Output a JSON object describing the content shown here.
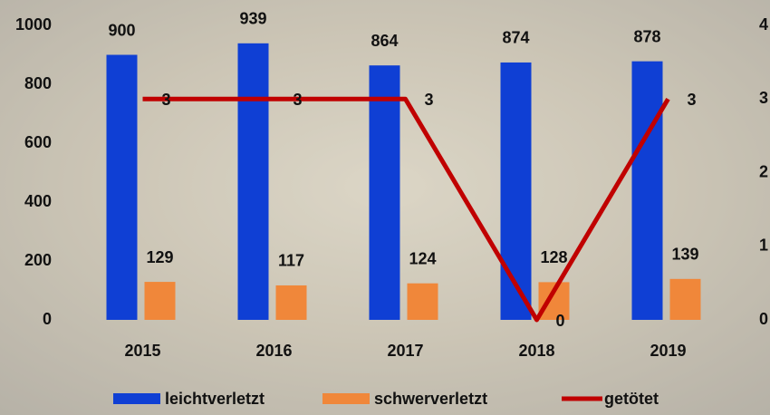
{
  "chart_data": {
    "type": "bar-line",
    "categories": [
      "2015",
      "2016",
      "2017",
      "2018",
      "2019"
    ],
    "series": [
      {
        "name": "leichtverletzt",
        "type": "bar",
        "color": "#0f3fd4",
        "values": [
          900,
          939,
          864,
          874,
          878
        ]
      },
      {
        "name": "schwerverletzt",
        "type": "bar",
        "color": "#f0873a",
        "values": [
          129,
          117,
          124,
          128,
          139
        ]
      },
      {
        "name": "getötet",
        "type": "line",
        "axis": "y2",
        "color": "#c00000",
        "values": [
          3,
          3,
          3,
          0,
          3
        ]
      }
    ],
    "ylim": [
      0,
      1000
    ],
    "yticks": [
      0,
      200,
      400,
      600,
      800,
      1000
    ],
    "y2lim": [
      0,
      4
    ],
    "y2ticks": [
      0,
      1,
      2,
      3,
      4
    ],
    "legend": "bottom"
  }
}
